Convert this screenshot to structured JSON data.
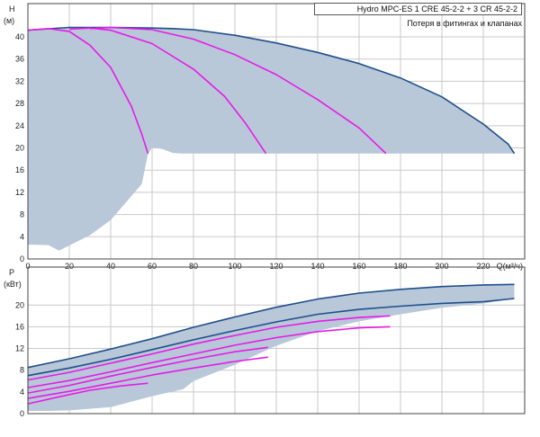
{
  "chart_data": [
    {
      "type": "line",
      "title": "Hydro MPC-ES 1 CRE 45-2-2  +  3 CR 45-2-2",
      "annotation": "Потеря в фитингах и клапанах",
      "ylabel_top": "H",
      "ylabel_unit": "(м)",
      "xlabel": "Q(м³/ч)",
      "xlim": [
        0,
        240
      ],
      "ylim": [
        0,
        46
      ],
      "xticks": [
        0,
        20,
        40,
        60,
        80,
        100,
        120,
        140,
        160,
        180,
        200,
        220
      ],
      "yticks": [
        0,
        4,
        8,
        12,
        16,
        20,
        24,
        28,
        32,
        36,
        40
      ],
      "grid": true,
      "band": {
        "name": "operating-range",
        "color": "#b8c8d8",
        "upper": [
          [
            0,
            41.2
          ],
          [
            20,
            41.7
          ],
          [
            40,
            41.7
          ],
          [
            60,
            41.6
          ],
          [
            70,
            41.5
          ],
          [
            80,
            41.3
          ],
          [
            100,
            40.3
          ],
          [
            120,
            38.9
          ],
          [
            140,
            37.2
          ],
          [
            160,
            35.2
          ],
          [
            180,
            32.6
          ],
          [
            200,
            29.2
          ],
          [
            220,
            24.3
          ],
          [
            232,
            20.7
          ],
          [
            235,
            19.0
          ]
        ],
        "lower": [
          [
            0,
            2.6
          ],
          [
            10,
            2.5
          ],
          [
            15,
            1.5
          ],
          [
            30,
            4.3
          ],
          [
            40,
            7.0
          ],
          [
            55,
            13.5
          ],
          [
            58,
            18.9
          ],
          [
            60,
            20.1
          ],
          [
            65,
            19.8
          ],
          [
            70,
            19.1
          ],
          [
            75,
            19.0
          ],
          [
            235,
            19.0
          ]
        ]
      },
      "series": [
        {
          "color": "#1f4e8c",
          "values": [
            [
              0,
              41.2
            ],
            [
              20,
              41.7
            ],
            [
              40,
              41.7
            ],
            [
              60,
              41.6
            ],
            [
              70,
              41.5
            ],
            [
              80,
              41.3
            ],
            [
              100,
              40.3
            ],
            [
              120,
              38.9
            ],
            [
              140,
              37.2
            ],
            [
              160,
              35.2
            ],
            [
              180,
              32.6
            ],
            [
              200,
              29.2
            ],
            [
              220,
              24.3
            ],
            [
              232,
              20.7
            ],
            [
              235,
              19.0
            ]
          ]
        },
        {
          "color": "#e81ae8",
          "values": [
            [
              0,
              41.2
            ],
            [
              10,
              41.5
            ],
            [
              20,
              41.0
            ],
            [
              30,
              38.5
            ],
            [
              40,
              34.5
            ],
            [
              50,
              27.5
            ],
            [
              55,
              22.5
            ],
            [
              58,
              19.0
            ]
          ]
        },
        {
          "color": "#e81ae8",
          "values": [
            [
              20,
              41.4
            ],
            [
              30,
              41.6
            ],
            [
              40,
              41.2
            ],
            [
              60,
              38.8
            ],
            [
              80,
              34.2
            ],
            [
              95,
              29.3
            ],
            [
              105,
              24.5
            ],
            [
              115,
              19.0
            ]
          ]
        },
        {
          "color": "#e81ae8",
          "values": [
            [
              30,
              41.5
            ],
            [
              40,
              41.7
            ],
            [
              60,
              41.3
            ],
            [
              80,
              39.6
            ],
            [
              100,
              36.8
            ],
            [
              120,
              33.2
            ],
            [
              140,
              28.7
            ],
            [
              160,
              23.6
            ],
            [
              173,
              19.0
            ]
          ]
        }
      ]
    },
    {
      "type": "line",
      "ylabel_top": "P",
      "ylabel_unit": "(кВт)",
      "xlim": [
        0,
        240
      ],
      "ylim": [
        0,
        27
      ],
      "yticks": [
        0,
        4,
        8,
        12,
        16,
        20
      ],
      "grid": true,
      "band": {
        "name": "power-range",
        "color": "#b8c8d8",
        "upper": [
          [
            0,
            8.5
          ],
          [
            20,
            10.1
          ],
          [
            40,
            11.9
          ],
          [
            60,
            13.8
          ],
          [
            80,
            15.9
          ],
          [
            100,
            17.8
          ],
          [
            120,
            19.6
          ],
          [
            140,
            21.1
          ],
          [
            160,
            22.2
          ],
          [
            180,
            22.9
          ],
          [
            200,
            23.4
          ],
          [
            220,
            23.7
          ],
          [
            235,
            23.8
          ]
        ],
        "lower": [
          [
            0,
            0.5
          ],
          [
            10,
            0.5
          ],
          [
            20,
            0.6
          ],
          [
            40,
            1.2
          ],
          [
            60,
            3.2
          ],
          [
            75,
            4.5
          ],
          [
            80,
            6.0
          ],
          [
            100,
            9.0
          ],
          [
            120,
            12.5
          ],
          [
            140,
            15.2
          ],
          [
            160,
            17.0
          ],
          [
            180,
            18.3
          ],
          [
            200,
            19.5
          ],
          [
            220,
            20.3
          ],
          [
            235,
            21.2
          ]
        ]
      },
      "series": [
        {
          "color": "#1f4e8c",
          "values": [
            [
              0,
              8.5
            ],
            [
              20,
              10.1
            ],
            [
              40,
              11.9
            ],
            [
              60,
              13.8
            ],
            [
              80,
              15.9
            ],
            [
              100,
              17.8
            ],
            [
              120,
              19.6
            ],
            [
              140,
              21.1
            ],
            [
              160,
              22.2
            ],
            [
              180,
              22.9
            ],
            [
              200,
              23.4
            ],
            [
              220,
              23.7
            ],
            [
              235,
              23.8
            ]
          ]
        },
        {
          "color": "#1f4e8c",
          "values": [
            [
              0,
              7.0
            ],
            [
              20,
              8.4
            ],
            [
              40,
              10.0
            ],
            [
              60,
              11.8
            ],
            [
              80,
              13.6
            ],
            [
              100,
              15.3
            ],
            [
              120,
              16.9
            ],
            [
              140,
              18.3
            ],
            [
              160,
              19.2
            ],
            [
              180,
              19.8
            ],
            [
              200,
              20.3
            ],
            [
              220,
              20.6
            ],
            [
              235,
              21.2
            ]
          ]
        },
        {
          "color": "#e81ae8",
          "values": [
            [
              0,
              6.2
            ],
            [
              20,
              7.6
            ],
            [
              40,
              9.3
            ],
            [
              60,
              11.0
            ],
            [
              80,
              12.8
            ],
            [
              100,
              14.4
            ],
            [
              120,
              15.9
            ],
            [
              140,
              17.0
            ],
            [
              160,
              17.7
            ],
            [
              175,
              18.0
            ]
          ]
        },
        {
          "color": "#e81ae8",
          "values": [
            [
              0,
              4.8
            ],
            [
              20,
              6.1
            ],
            [
              40,
              7.7
            ],
            [
              60,
              9.4
            ],
            [
              80,
              11.0
            ],
            [
              100,
              12.6
            ],
            [
              120,
              14.0
            ],
            [
              140,
              15.1
            ],
            [
              160,
              15.8
            ],
            [
              175,
              16.0
            ]
          ]
        },
        {
          "color": "#e81ae8",
          "values": [
            [
              0,
              3.8
            ],
            [
              20,
              5.2
            ],
            [
              40,
              6.9
            ],
            [
              60,
              8.5
            ],
            [
              80,
              10.0
            ],
            [
              100,
              11.4
            ],
            [
              116,
              12.2
            ]
          ]
        },
        {
          "color": "#e81ae8",
          "values": [
            [
              0,
              2.8
            ],
            [
              20,
              4.1
            ],
            [
              40,
              5.6
            ],
            [
              60,
              7.1
            ],
            [
              80,
              8.4
            ],
            [
              100,
              9.6
            ],
            [
              116,
              10.4
            ]
          ]
        },
        {
          "color": "#e81ae8",
          "values": [
            [
              0,
              1.8
            ],
            [
              15,
              3.1
            ],
            [
              30,
              4.3
            ],
            [
              45,
              5.1
            ],
            [
              58,
              5.6
            ]
          ]
        }
      ]
    }
  ]
}
